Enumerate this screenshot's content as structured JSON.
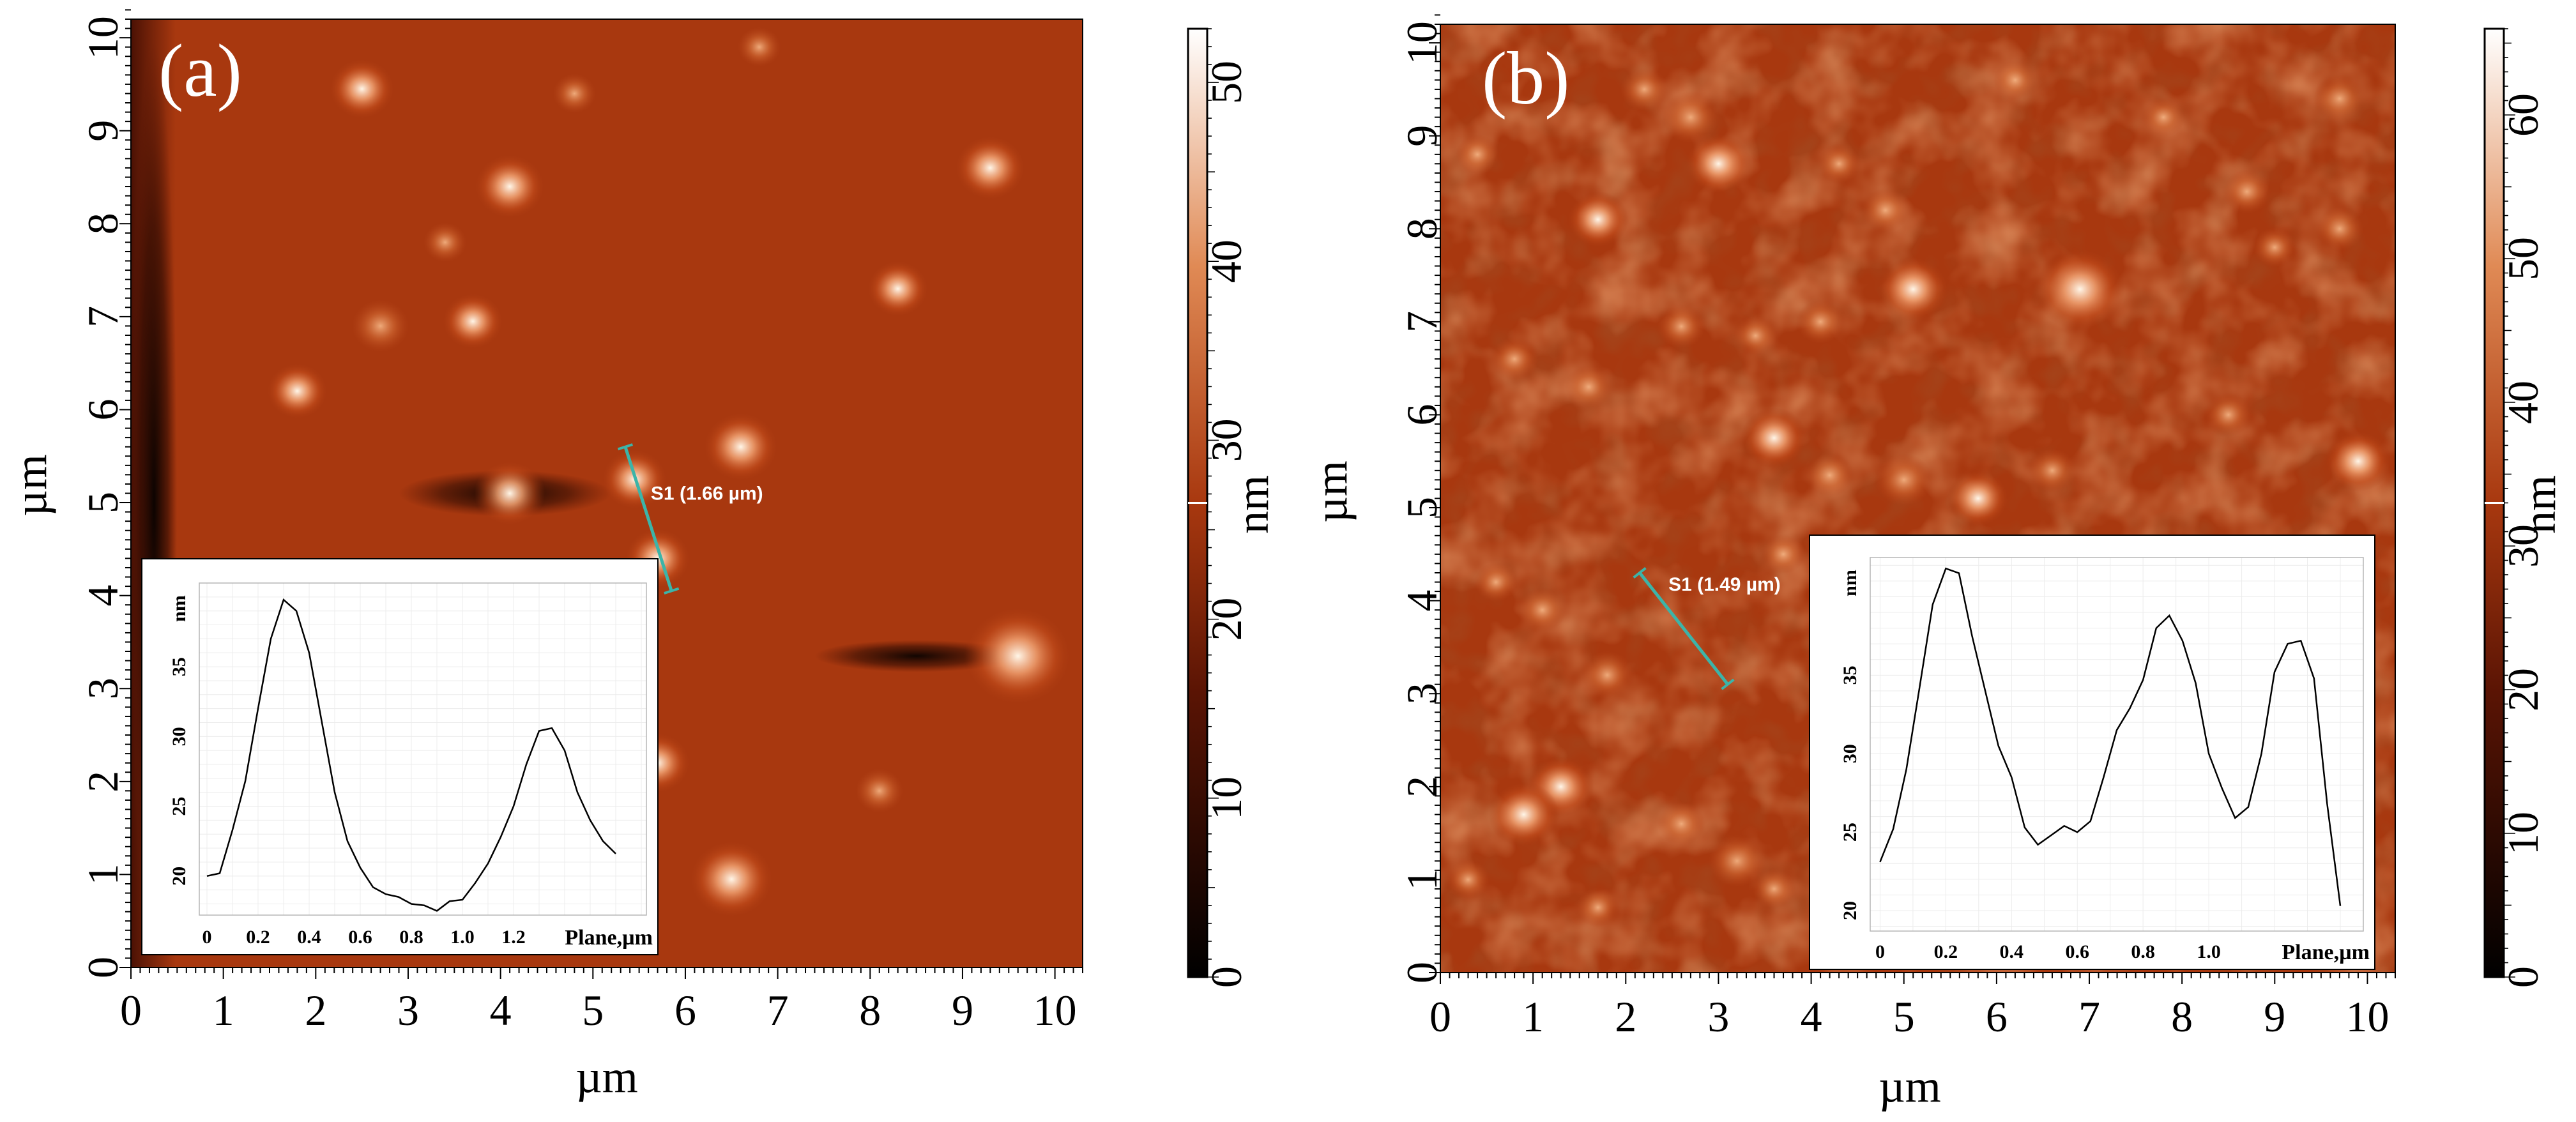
{
  "colors": {
    "afm_low": "#000000",
    "afm_mid": "#8a2208",
    "afm_base": "#a8380f",
    "afm_high": "#ffffff",
    "profile_line": "#3cb4a8",
    "inset_line": "#000000"
  },
  "chart_data": [
    {
      "type": "heatmap",
      "panel_label": "(a)",
      "xlabel": "µm",
      "ylabel": "µm",
      "x_ticks": [
        "0",
        "1",
        "2",
        "3",
        "4",
        "5",
        "6",
        "7",
        "8",
        "9",
        "10"
      ],
      "y_ticks": [
        "0",
        "1",
        "2",
        "3",
        "4",
        "5",
        "6",
        "7",
        "8",
        "9",
        "10"
      ],
      "xlim": [
        0,
        10.3
      ],
      "ylim": [
        0,
        10.2
      ],
      "colorbar": {
        "label": "nm",
        "ticks": [
          "0",
          "10",
          "20",
          "30",
          "40",
          "50"
        ],
        "range": [
          0,
          53
        ],
        "marker_value": 26.5
      },
      "profile_line": {
        "label": "S1 (1.66 µm)",
        "x": [
          5.35,
          5.85
        ],
        "y": [
          5.6,
          4.05
        ]
      },
      "features": [
        {
          "x": 2.5,
          "y": 9.45,
          "h": 0.55
        },
        {
          "x": 4.1,
          "y": 8.4,
          "h": 0.6
        },
        {
          "x": 9.3,
          "y": 8.6,
          "h": 0.6
        },
        {
          "x": 2.7,
          "y": 6.9,
          "h": 0.45
        },
        {
          "x": 3.7,
          "y": 6.95,
          "h": 0.5
        },
        {
          "x": 8.3,
          "y": 7.3,
          "h": 0.5
        },
        {
          "x": 1.8,
          "y": 6.2,
          "h": 0.5
        },
        {
          "x": 6.6,
          "y": 5.6,
          "h": 0.65
        },
        {
          "x": 4.1,
          "y": 5.1,
          "h": 0.6
        },
        {
          "x": 5.45,
          "y": 5.25,
          "h": 0.55
        },
        {
          "x": 5.7,
          "y": 4.4,
          "h": 0.55
        },
        {
          "x": 9.6,
          "y": 3.35,
          "h": 1.0
        },
        {
          "x": 5.7,
          "y": 2.2,
          "h": 0.55
        },
        {
          "x": 6.5,
          "y": 0.95,
          "h": 0.75
        },
        {
          "x": 8.1,
          "y": 1.9,
          "h": 0.35
        },
        {
          "x": 3.4,
          "y": 7.8,
          "h": 0.3
        },
        {
          "x": 6.8,
          "y": 9.9,
          "h": 0.3
        },
        {
          "x": 4.8,
          "y": 9.4,
          "h": 0.3
        }
      ],
      "dark_streaks": [
        {
          "x0": 0,
          "x1": 0.5,
          "y": 5.0,
          "w": 10
        },
        {
          "x0": 2.9,
          "x1": 5.2,
          "y": 5.1,
          "w": 0.5
        },
        {
          "x0": 7.4,
          "x1": 9.6,
          "y": 3.35,
          "w": 0.35
        }
      ],
      "inset": {
        "xlabel": "Plane,µm",
        "ylabel": "nm",
        "x_ticks": [
          "0",
          "0.2",
          "0.4",
          "0.6",
          "0.8",
          "1.0",
          "1.2"
        ],
        "y_ticks": [
          "20",
          "25",
          "30",
          "35"
        ],
        "xlim": [
          -0.03,
          1.72
        ],
        "ylim": [
          17.2,
          41
        ],
        "x": [
          0,
          0.05,
          0.1,
          0.15,
          0.2,
          0.25,
          0.3,
          0.35,
          0.4,
          0.45,
          0.5,
          0.55,
          0.6,
          0.65,
          0.7,
          0.75,
          0.8,
          0.85,
          0.9,
          0.95,
          1.0,
          1.05,
          1.1,
          1.15,
          1.2,
          1.25,
          1.3,
          1.35,
          1.4,
          1.45,
          1.5,
          1.55,
          1.6
        ],
        "y": [
          20.0,
          20.2,
          23.3,
          26.8,
          32.0,
          37.0,
          39.8,
          39.0,
          36.0,
          31.0,
          26.0,
          22.5,
          20.6,
          19.2,
          18.7,
          18.5,
          18.0,
          17.9,
          17.5,
          18.2,
          18.3,
          19.5,
          20.9,
          22.8,
          25.0,
          28.0,
          30.4,
          30.6,
          29.0,
          26.0,
          24.0,
          22.5,
          21.6
        ]
      }
    },
    {
      "type": "heatmap",
      "panel_label": "(b)",
      "xlabel": "µm",
      "ylabel": "µm",
      "x_ticks": [
        "0",
        "1",
        "2",
        "3",
        "4",
        "5",
        "6",
        "7",
        "8",
        "9",
        "10"
      ],
      "y_ticks": [
        "0",
        "1",
        "2",
        "3",
        "4",
        "5",
        "6",
        "7",
        "8",
        "9",
        "10"
      ],
      "xlim": [
        0,
        10.3
      ],
      "ylim": [
        0,
        10.2
      ],
      "colorbar": {
        "label": "nm",
        "ticks": [
          "0",
          "10",
          "20",
          "30",
          "40",
          "50",
          "60"
        ],
        "range": [
          0,
          66
        ],
        "marker_value": 33
      },
      "profile_line": {
        "label": "S1 (1.49 µm)",
        "x": [
          2.15,
          3.1
        ],
        "y": [
          4.3,
          3.1
        ]
      },
      "features": [
        {
          "x": 2.7,
          "y": 9.2,
          "h": 0.45
        },
        {
          "x": 3.0,
          "y": 8.7,
          "h": 0.55
        },
        {
          "x": 4.8,
          "y": 8.2,
          "h": 0.35
        },
        {
          "x": 4.3,
          "y": 8.7,
          "h": 0.3
        },
        {
          "x": 1.7,
          "y": 8.1,
          "h": 0.5
        },
        {
          "x": 5.1,
          "y": 7.35,
          "h": 0.6
        },
        {
          "x": 4.1,
          "y": 7.0,
          "h": 0.35
        },
        {
          "x": 2.6,
          "y": 6.95,
          "h": 0.35
        },
        {
          "x": 3.4,
          "y": 6.85,
          "h": 0.3
        },
        {
          "x": 0.8,
          "y": 6.6,
          "h": 0.35
        },
        {
          "x": 1.6,
          "y": 6.3,
          "h": 0.35
        },
        {
          "x": 3.6,
          "y": 5.75,
          "h": 0.55
        },
        {
          "x": 4.2,
          "y": 5.35,
          "h": 0.35
        },
        {
          "x": 5.0,
          "y": 5.3,
          "h": 0.45
        },
        {
          "x": 5.8,
          "y": 5.1,
          "h": 0.5
        },
        {
          "x": 6.9,
          "y": 7.35,
          "h": 0.8
        },
        {
          "x": 6.6,
          "y": 5.4,
          "h": 0.35
        },
        {
          "x": 8.5,
          "y": 6.0,
          "h": 0.35
        },
        {
          "x": 9.9,
          "y": 5.5,
          "h": 0.55
        },
        {
          "x": 9.0,
          "y": 7.8,
          "h": 0.3
        },
        {
          "x": 9.7,
          "y": 8.0,
          "h": 0.35
        },
        {
          "x": 8.7,
          "y": 8.4,
          "h": 0.35
        },
        {
          "x": 7.8,
          "y": 9.2,
          "h": 0.3
        },
        {
          "x": 6.2,
          "y": 9.6,
          "h": 0.3
        },
        {
          "x": 9.7,
          "y": 9.4,
          "h": 0.4
        },
        {
          "x": 1.1,
          "y": 3.9,
          "h": 0.35
        },
        {
          "x": 1.8,
          "y": 3.2,
          "h": 0.4
        },
        {
          "x": 1.3,
          "y": 2.0,
          "h": 0.55
        },
        {
          "x": 0.9,
          "y": 1.7,
          "h": 0.6
        },
        {
          "x": 2.6,
          "y": 1.6,
          "h": 0.35
        },
        {
          "x": 3.2,
          "y": 1.2,
          "h": 0.45
        },
        {
          "x": 0.3,
          "y": 1.0,
          "h": 0.3
        },
        {
          "x": 1.7,
          "y": 0.7,
          "h": 0.3
        },
        {
          "x": 3.6,
          "y": 0.9,
          "h": 0.3
        },
        {
          "x": 8.4,
          "y": 0.5,
          "h": 0.3
        },
        {
          "x": 3.7,
          "y": 4.5,
          "h": 0.3
        },
        {
          "x": 0.4,
          "y": 8.8,
          "h": 0.3
        },
        {
          "x": 0.6,
          "y": 4.2,
          "h": 0.3
        },
        {
          "x": 7.6,
          "y": 2.5,
          "h": 0.3
        },
        {
          "x": 2.2,
          "y": 9.5,
          "h": 0.35
        }
      ],
      "dark_streaks": [],
      "inset": {
        "xlabel": "Plane,µm",
        "ylabel": "nm",
        "x_ticks": [
          "0",
          "0.2",
          "0.4",
          "0.6",
          "0.8",
          "1.0"
        ],
        "y_ticks": [
          "20",
          "25",
          "30",
          "35"
        ],
        "xlim": [
          -0.03,
          1.47
        ],
        "ylim": [
          18.7,
          42.5
        ],
        "x": [
          0,
          0.04,
          0.08,
          0.12,
          0.16,
          0.2,
          0.24,
          0.28,
          0.32,
          0.36,
          0.4,
          0.44,
          0.48,
          0.52,
          0.56,
          0.6,
          0.64,
          0.68,
          0.72,
          0.76,
          0.8,
          0.84,
          0.88,
          0.92,
          0.96,
          1.0,
          1.04,
          1.08,
          1.12,
          1.16,
          1.2,
          1.24,
          1.28,
          1.32,
          1.36,
          1.4
        ],
        "y": [
          23.1,
          25.2,
          29.0,
          34.2,
          39.5,
          41.8,
          41.5,
          37.5,
          34.0,
          30.5,
          28.5,
          25.3,
          24.2,
          24.8,
          25.4,
          25.0,
          25.7,
          28.5,
          31.5,
          32.9,
          34.7,
          38.0,
          38.8,
          37.2,
          34.5,
          30.0,
          27.8,
          25.9,
          26.6,
          30.0,
          35.2,
          37.0,
          37.2,
          34.8,
          26.8,
          20.3
        ]
      }
    }
  ]
}
